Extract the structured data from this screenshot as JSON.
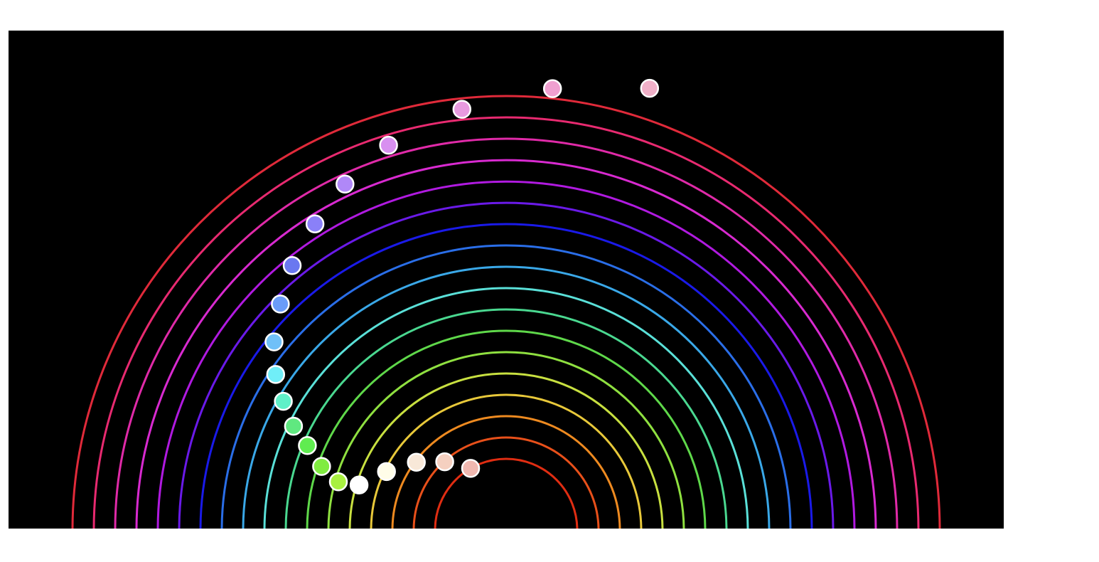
{
  "visualization": {
    "background": "#000000",
    "ring_colors": [
      "#e02d12",
      "#e8501a",
      "#ee8a20",
      "#e8c83a",
      "#c8e040",
      "#8fe040",
      "#5fd84a",
      "#4ad890",
      "#5ae0d8",
      "#3aa8e8",
      "#2a6ee8",
      "#1a1ae8",
      "#6a1ae8",
      "#b01ae0",
      "#d82ad0",
      "#e02aa8",
      "#e82a70",
      "#e02a3a"
    ],
    "ball_colors": [
      "#f0b8b0",
      "#f5d0c0",
      "#f8e8d8",
      "#fffde8",
      "#ffffff",
      "#a8f040",
      "#80ec40",
      "#60ec50",
      "#60e880",
      "#60f0c8",
      "#70eef8",
      "#70c0f8",
      "#6a9cf8",
      "#6a78f0",
      "#8a80f8",
      "#b088f8",
      "#d890f0",
      "#e89ae0",
      "#f0a0d0",
      "#f0b0c8"
    ]
  }
}
